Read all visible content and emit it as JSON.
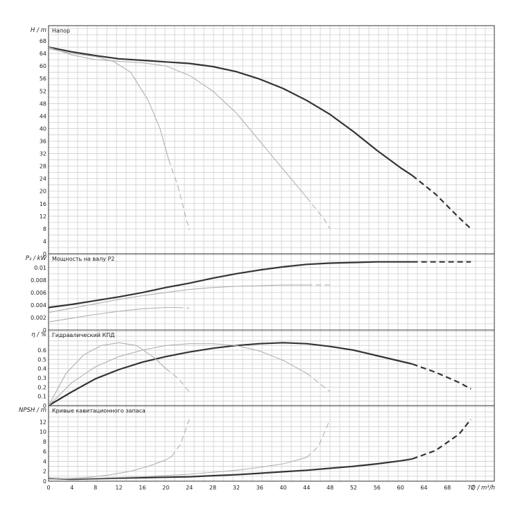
{
  "chart_data": [
    {
      "type": "line",
      "title": "Напор",
      "ylabel": "H / m",
      "xlim": [
        0,
        76
      ],
      "ylim": [
        0,
        70
      ],
      "yticks": [
        0,
        4,
        8,
        12,
        16,
        20,
        24,
        28,
        32,
        36,
        40,
        44,
        48,
        52,
        56,
        60,
        64,
        68
      ],
      "series": [
        {
          "color": "#333333",
          "width": 2.2,
          "solid": [
            [
              0,
              66
            ],
            [
              4,
              64.5
            ],
            [
              8,
              63.3
            ],
            [
              12,
              62.3
            ],
            [
              16,
              61.8
            ],
            [
              20,
              61.3
            ],
            [
              24,
              60.8
            ],
            [
              28,
              59.8
            ],
            [
              32,
              58.2
            ],
            [
              36,
              55.8
            ],
            [
              40,
              52.8
            ],
            [
              44,
              49
            ],
            [
              48,
              44.5
            ],
            [
              52,
              39
            ],
            [
              56,
              33
            ],
            [
              60,
              27.5
            ],
            [
              62,
              25
            ]
          ],
          "dashed": [
            [
              62,
              25
            ],
            [
              66,
              19
            ],
            [
              70,
              11.5
            ],
            [
              72,
              8
            ]
          ]
        },
        {
          "color": "#b0b0b0",
          "width": 1.1,
          "solid": [
            [
              0,
              66
            ],
            [
              4,
              63.5
            ],
            [
              8,
              62
            ],
            [
              12,
              61.5
            ],
            [
              16,
              61
            ],
            [
              20,
              60
            ],
            [
              24,
              57
            ],
            [
              28,
              52
            ],
            [
              32,
              45
            ],
            [
              36,
              36
            ],
            [
              40,
              27
            ],
            [
              44,
              18
            ]
          ],
          "dashed": [
            [
              44,
              18
            ],
            [
              47,
              11
            ],
            [
              48,
              8
            ]
          ]
        },
        {
          "color": "#b0b0b0",
          "width": 1.1,
          "solid": [
            [
              0,
              65.5
            ],
            [
              4,
              64
            ],
            [
              8,
              63
            ],
            [
              11,
              61.5
            ],
            [
              14,
              58
            ],
            [
              17,
              49
            ],
            [
              19,
              40
            ],
            [
              20.5,
              30
            ]
          ],
          "dashed": [
            [
              20.5,
              30
            ],
            [
              22,
              22
            ],
            [
              23.5,
              11
            ],
            [
              24,
              7.5
            ]
          ]
        }
      ]
    },
    {
      "type": "line",
      "title": "Мощность на валу P2",
      "ylabel": "P₂ / kW",
      "xlim": [
        0,
        76
      ],
      "ylim": [
        0,
        0.0112
      ],
      "yticks": [
        0,
        0.002,
        0.004,
        0.006,
        0.008,
        0.01
      ],
      "ytick_labels": [
        "0",
        "0.002",
        "0.004",
        "0.006",
        "0.008",
        "0.01"
      ],
      "series": [
        {
          "color": "#333333",
          "width": 2.2,
          "solid": [
            [
              0,
              0.0036
            ],
            [
              4,
              0.0041
            ],
            [
              8,
              0.0047
            ],
            [
              12,
              0.0053
            ],
            [
              16,
              0.006
            ],
            [
              20,
              0.0068
            ],
            [
              24,
              0.0075
            ],
            [
              28,
              0.0083
            ],
            [
              32,
              0.009
            ],
            [
              36,
              0.0096
            ],
            [
              40,
              0.0101
            ],
            [
              44,
              0.0105
            ],
            [
              48,
              0.0107
            ],
            [
              52,
              0.0108
            ],
            [
              56,
              0.0109
            ],
            [
              62,
              0.0109
            ]
          ],
          "dashed": [
            [
              62,
              0.0109
            ],
            [
              72,
              0.0109
            ]
          ]
        },
        {
          "color": "#b0b0b0",
          "width": 1.1,
          "solid": [
            [
              0,
              0.0028
            ],
            [
              4,
              0.0035
            ],
            [
              8,
              0.0042
            ],
            [
              12,
              0.0049
            ],
            [
              16,
              0.0055
            ],
            [
              20,
              0.006
            ],
            [
              24,
              0.0065
            ],
            [
              28,
              0.0068
            ],
            [
              32,
              0.007
            ],
            [
              36,
              0.0071
            ],
            [
              40,
              0.0072
            ],
            [
              44,
              0.0072
            ]
          ],
          "dashed": [
            [
              44,
              0.0072
            ],
            [
              48,
              0.0072
            ]
          ]
        },
        {
          "color": "#b0b0b0",
          "width": 1.1,
          "solid": [
            [
              0,
              0.0013
            ],
            [
              4,
              0.0019
            ],
            [
              8,
              0.0025
            ],
            [
              12,
              0.003
            ],
            [
              16,
              0.0034
            ],
            [
              20,
              0.0036
            ],
            [
              22,
              0.0036
            ]
          ],
          "dashed": [
            [
              22,
              0.0036
            ],
            [
              24,
              0.0035
            ]
          ]
        }
      ]
    },
    {
      "type": "line",
      "title": "Гидравлический КПД",
      "ylabel": "η / %",
      "xlim": [
        0,
        76
      ],
      "ylim": [
        0,
        0.75
      ],
      "yticks": [
        0,
        0.1,
        0.2,
        0.3,
        0.4,
        0.5,
        0.6
      ],
      "ytick_labels": [
        "0",
        "0.1",
        "0.2",
        "0.3",
        "0.4",
        "0.5",
        "0.6"
      ],
      "series": [
        {
          "color": "#333333",
          "width": 2.2,
          "solid": [
            [
              0,
              0
            ],
            [
              4,
              0.15
            ],
            [
              8,
              0.29
            ],
            [
              12,
              0.39
            ],
            [
              16,
              0.47
            ],
            [
              20,
              0.53
            ],
            [
              24,
              0.58
            ],
            [
              28,
              0.62
            ],
            [
              32,
              0.65
            ],
            [
              36,
              0.67
            ],
            [
              40,
              0.68
            ],
            [
              44,
              0.67
            ],
            [
              48,
              0.64
            ],
            [
              52,
              0.6
            ],
            [
              56,
              0.54
            ],
            [
              60,
              0.48
            ],
            [
              62,
              0.45
            ]
          ],
          "dashed": [
            [
              62,
              0.45
            ],
            [
              66,
              0.36
            ],
            [
              70,
              0.25
            ],
            [
              72,
              0.18
            ]
          ]
        },
        {
          "color": "#b0b0b0",
          "width": 1.1,
          "solid": [
            [
              0,
              0
            ],
            [
              4,
              0.25
            ],
            [
              8,
              0.42
            ],
            [
              12,
              0.53
            ],
            [
              16,
              0.6
            ],
            [
              20,
              0.65
            ],
            [
              24,
              0.67
            ],
            [
              28,
              0.67
            ],
            [
              32,
              0.65
            ],
            [
              36,
              0.59
            ],
            [
              40,
              0.49
            ],
            [
              44,
              0.35
            ]
          ],
          "dashed": [
            [
              44,
              0.35
            ],
            [
              48,
              0.15
            ]
          ]
        },
        {
          "color": "#b0b0b0",
          "width": 1.1,
          "solid": [
            [
              0,
              0
            ],
            [
              3,
              0.35
            ],
            [
              6,
              0.55
            ],
            [
              9,
              0.65
            ],
            [
              12,
              0.68
            ],
            [
              15,
              0.65
            ],
            [
              18,
              0.52
            ],
            [
              20,
              0.4
            ]
          ],
          "dashed": [
            [
              20,
              0.4
            ],
            [
              22,
              0.3
            ],
            [
              24,
              0.15
            ]
          ]
        }
      ]
    },
    {
      "type": "line",
      "title": "Кривые кавитационного запаса",
      "ylabel": "NPSH / m",
      "xlabel": "Q / m³/h",
      "xlim": [
        0,
        76
      ],
      "ylim": [
        0,
        14
      ],
      "yticks": [
        0,
        2,
        4,
        6,
        8,
        10,
        12
      ],
      "xticks": [
        0,
        4,
        8,
        12,
        16,
        20,
        24,
        28,
        32,
        36,
        40,
        44,
        48,
        52,
        56,
        60,
        64,
        68,
        72
      ],
      "series": [
        {
          "color": "#333333",
          "width": 2.2,
          "solid": [
            [
              0,
              0.5
            ],
            [
              4,
              0.4
            ],
            [
              8,
              0.5
            ],
            [
              12,
              0.6
            ],
            [
              16,
              0.7
            ],
            [
              20,
              0.8
            ],
            [
              24,
              0.9
            ],
            [
              28,
              1.1
            ],
            [
              32,
              1.3
            ],
            [
              36,
              1.6
            ],
            [
              40,
              1.9
            ],
            [
              44,
              2.2
            ],
            [
              48,
              2.6
            ],
            [
              52,
              3
            ],
            [
              56,
              3.5
            ],
            [
              60,
              4.1
            ],
            [
              62,
              4.5
            ]
          ],
          "dashed": [
            [
              62,
              4.5
            ],
            [
              66,
              6.2
            ],
            [
              70,
              9.5
            ],
            [
              72,
              12.5
            ]
          ]
        },
        {
          "color": "#b0b0b0",
          "width": 1.1,
          "solid": [
            [
              0,
              0.4
            ],
            [
              8,
              0.6
            ],
            [
              16,
              0.9
            ],
            [
              24,
              1.4
            ],
            [
              32,
              2.2
            ],
            [
              36,
              2.8
            ],
            [
              40,
              3.5
            ],
            [
              44,
              4.8
            ]
          ],
          "dashed": [
            [
              44,
              4.8
            ],
            [
              46,
              7
            ],
            [
              48,
              12.5
            ]
          ]
        },
        {
          "color": "#b0b0b0",
          "width": 1.1,
          "solid": [
            [
              0,
              0.4
            ],
            [
              6,
              0.7
            ],
            [
              10,
              1.2
            ],
            [
              14,
              2
            ],
            [
              17,
              3
            ],
            [
              20,
              4.3
            ],
            [
              21,
              5
            ]
          ],
          "dashed": [
            [
              21,
              5
            ],
            [
              22.5,
              7.5
            ],
            [
              24,
              12.5
            ]
          ]
        }
      ]
    }
  ]
}
